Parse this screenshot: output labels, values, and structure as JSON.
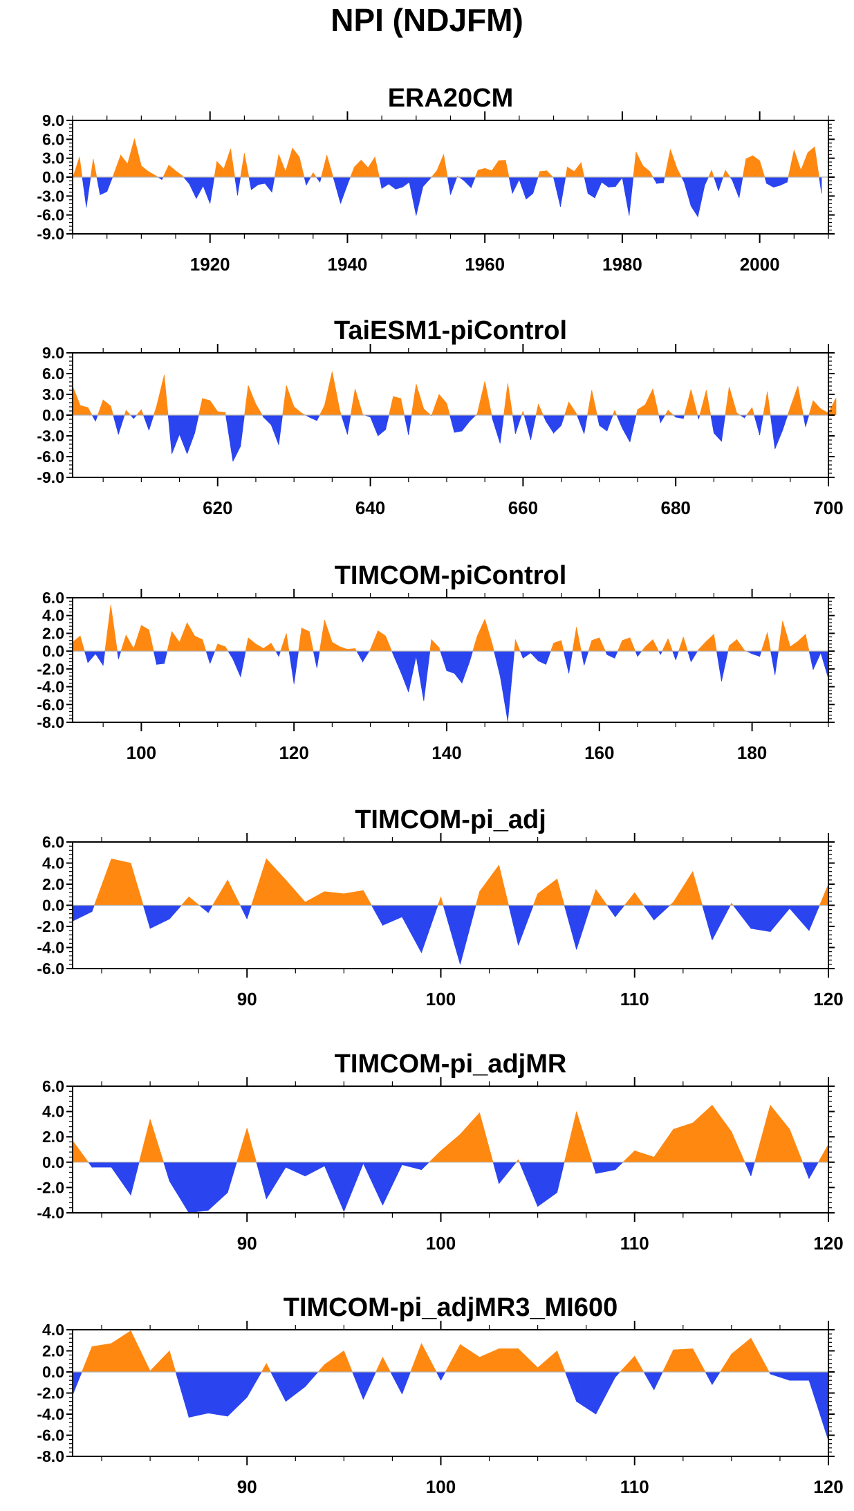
{
  "title": "NPI (NDJFM)",
  "colors": {
    "positive": "#ff8811",
    "negative": "#2a44f0",
    "axis": "#000000",
    "zero": "#b0b0b0"
  },
  "chart_data": [
    {
      "type": "area",
      "title": "ERA20CM",
      "xlim": [
        1900,
        2010
      ],
      "ylim": [
        -9,
        9
      ],
      "yticks": [
        "9.0",
        "6.0",
        "3.0",
        "0.0",
        "-3.0",
        "-6.0",
        "-9.0"
      ],
      "xticks": [
        1920,
        1940,
        1960,
        1980,
        2000
      ],
      "x_start": 1900,
      "values": [
        -0.2,
        3.2,
        -4.8,
        2.9,
        -2.8,
        -2.3,
        0.5,
        3.5,
        2.1,
        6.1,
        1.8,
        0.9,
        0.3,
        -0.4,
        1.9,
        1.0,
        0.2,
        -1.1,
        -3.4,
        -1.4,
        -4.2,
        2.5,
        1.3,
        4.5,
        -2.9,
        3.8,
        -2.0,
        -1.2,
        -1.0,
        -2.4,
        3.6,
        0.9,
        4.6,
        3.2,
        -1.3,
        0.7,
        -0.8,
        3.5,
        -0.3,
        -4.2,
        -1.2,
        1.6,
        2.7,
        1.5,
        3.2,
        -1.8,
        -1.1,
        -1.9,
        -1.6,
        -0.8,
        -6.1,
        -1.5,
        -0.3,
        1.0,
        3.6,
        -2.8,
        0.2,
        -0.6,
        -1.7,
        1.1,
        1.4,
        1.0,
        2.6,
        2.7,
        -2.6,
        -0.4,
        -3.5,
        -2.6,
        0.9,
        1.0,
        -0.1,
        -4.7,
        1.6,
        0.9,
        2.3,
        -2.6,
        -3.3,
        -0.8,
        -1.6,
        -1.5,
        -0.1,
        -6.1,
        4.0,
        1.8,
        0.9,
        -1.0,
        -0.9,
        4.4,
        1.3,
        -0.8,
        -4.6,
        -6.3,
        -1.3,
        1.1,
        -2.2,
        1.1,
        -0.5,
        -3.3,
        2.9,
        3.4,
        2.6,
        -1.0,
        -1.6,
        -1.3,
        -0.8,
        4.3,
        1.1,
        3.9,
        4.8,
        -2.6
      ]
    },
    {
      "type": "area",
      "title": "TaiESM1-piControl",
      "xlim": [
        601,
        700
      ],
      "ylim": [
        -9,
        9
      ],
      "yticks": [
        "9.0",
        "6.0",
        "3.0",
        "0.0",
        "-3.0",
        "-6.0",
        "-9.0"
      ],
      "xticks": [
        620,
        640,
        660,
        680,
        700
      ],
      "x_start": 601,
      "values": [
        4.2,
        1.4,
        1.1,
        -0.9,
        2.2,
        1.3,
        -2.8,
        0.7,
        -0.5,
        0.8,
        -2.2,
        1.3,
        5.8,
        -5.6,
        -2.8,
        -5.6,
        -2.6,
        2.4,
        2.1,
        0.5,
        0.4,
        -6.7,
        -4.5,
        4.3,
        1.6,
        -0.3,
        -1.4,
        -4.3,
        4.3,
        1.2,
        0.3,
        -0.3,
        -0.8,
        1.4,
        6.3,
        0.7,
        -2.8,
        3.8,
        0.1,
        -0.3,
        -3.0,
        -2.1,
        2.7,
        2.4,
        -2.9,
        4.5,
        0.9,
        -0.1,
        3.0,
        1.7,
        -2.5,
        -2.3,
        -0.9,
        0.2,
        4.9,
        -0.6,
        -4.1,
        4.6,
        -2.7,
        0.6,
        -3.6,
        1.6,
        -0.9,
        -2.6,
        -1.5,
        1.9,
        0.2,
        -2.7,
        3.6,
        -1.5,
        -2.3,
        0.7,
        -1.9,
        -3.9,
        0.8,
        1.5,
        3.8,
        -1.1,
        0.7,
        -0.3,
        -0.5,
        3.7,
        -0.6,
        3.6,
        -2.6,
        -3.8,
        4.1,
        0.3,
        -0.4,
        1.1,
        -2.9,
        3.4,
        -4.9,
        -2.2,
        1.1,
        4.2,
        -1.7,
        2.1,
        0.9,
        0.3,
        2.5
      ]
    },
    {
      "type": "area",
      "title": "TIMCOM-piControl",
      "xlim": [
        91,
        190
      ],
      "ylim": [
        -8,
        6
      ],
      "yticks": [
        "6.0",
        "4.0",
        "2.0",
        "0.0",
        "-2.0",
        "-4.0",
        "-6.0",
        "-8.0"
      ],
      "xticks": [
        100,
        120,
        140,
        160,
        180
      ],
      "x_start": 91,
      "values": [
        1.0,
        1.7,
        -1.3,
        -0.3,
        -1.6,
        5.2,
        -0.9,
        1.8,
        0.3,
        2.9,
        2.4,
        -1.5,
        -1.4,
        2.2,
        1.0,
        3.2,
        1.7,
        1.3,
        -1.4,
        0.8,
        0.5,
        -0.9,
        -2.9,
        1.5,
        0.8,
        0.3,
        0.9,
        -0.6,
        2.0,
        -3.7,
        2.6,
        2.2,
        -1.9,
        3.5,
        1.0,
        0.5,
        0.2,
        0.3,
        -1.2,
        0.2,
        2.3,
        1.7,
        -0.4,
        -2.4,
        -4.6,
        -0.6,
        -5.6,
        1.3,
        0.4,
        -2.2,
        -2.5,
        -3.6,
        -1.2,
        1.7,
        3.6,
        0.7,
        -2.8,
        -7.9,
        1.3,
        -0.8,
        -0.2,
        -1.1,
        -1.5,
        0.9,
        1.2,
        -2.5,
        2.7,
        -1.6,
        1.2,
        1.5,
        -0.4,
        -0.8,
        1.2,
        1.5,
        -0.6,
        0.5,
        1.3,
        -0.4,
        1.4,
        -1.0,
        1.6,
        -1.2,
        0.2,
        1.1,
        1.9,
        -3.4,
        0.6,
        1.3,
        0.1,
        -0.3,
        -0.6,
        2.1,
        -2.7,
        3.4,
        0.5,
        1.1,
        1.9,
        -2.1,
        -0.2,
        -3.1
      ]
    },
    {
      "type": "area",
      "title": "TIMCOM-pi_adj",
      "xlim": [
        81,
        120
      ],
      "ylim": [
        -6,
        6
      ],
      "yticks": [
        "6.0",
        "4.0",
        "2.0",
        "0.0",
        "-2.0",
        "-4.0",
        "-6.0"
      ],
      "xticks": [
        90,
        100,
        110,
        120
      ],
      "x_start": 81,
      "values": [
        -1.5,
        -0.6,
        4.4,
        4.0,
        -2.2,
        -1.3,
        0.8,
        -0.7,
        2.4,
        -1.3,
        4.4,
        2.4,
        0.3,
        1.3,
        1.1,
        1.4,
        -1.9,
        -1.1,
        -4.5,
        0.8,
        -5.6,
        1.3,
        3.8,
        -3.8,
        1.1,
        2.5,
        -4.2,
        1.5,
        -1.1,
        1.2,
        -1.4,
        0.3,
        3.2,
        -3.3,
        0.2,
        -2.2,
        -2.5,
        -0.3,
        -2.4,
        2.0
      ]
    },
    {
      "type": "area",
      "title": "TIMCOM-pi_adjMR",
      "xlim": [
        81,
        120
      ],
      "ylim": [
        -4,
        6
      ],
      "yticks": [
        "6.0",
        "4.0",
        "2.0",
        "0.0",
        "-2.0",
        "-4.0"
      ],
      "xticks": [
        90,
        100,
        110,
        120
      ],
      "x_start": 81,
      "values": [
        1.7,
        -0.4,
        -0.4,
        -2.6,
        3.4,
        -1.5,
        -4.0,
        -3.8,
        -2.4,
        2.7,
        -2.9,
        -0.4,
        -1.1,
        -0.3,
        -3.9,
        -0.1,
        -3.4,
        -0.2,
        -0.6,
        0.9,
        2.2,
        3.9,
        -1.7,
        0.2,
        -3.5,
        -2.4,
        4.0,
        -0.9,
        -0.6,
        0.9,
        0.4,
        2.6,
        3.1,
        4.5,
        2.4,
        -1.1,
        4.5,
        2.6,
        -1.3,
        1.4
      ]
    },
    {
      "type": "area",
      "title": "TIMCOM-pi_adjMR3_MI600",
      "xlim": [
        81,
        120
      ],
      "ylim": [
        -8,
        4
      ],
      "yticks": [
        "4.0",
        "2.0",
        "0.0",
        "-2.0",
        "-4.0",
        "-6.0",
        "-8.0"
      ],
      "xticks": [
        90,
        100,
        110,
        120
      ],
      "x_start": 81,
      "values": [
        -2.2,
        2.4,
        2.7,
        3.9,
        0.1,
        2.0,
        -4.3,
        -3.9,
        -4.2,
        -2.4,
        0.8,
        -2.8,
        -1.4,
        0.7,
        2.0,
        -2.6,
        1.4,
        -2.1,
        2.7,
        -0.8,
        2.6,
        1.4,
        2.2,
        2.2,
        0.4,
        2.0,
        -2.8,
        -4.0,
        -0.5,
        1.5,
        -1.7,
        2.1,
        2.2,
        -1.2,
        1.7,
        3.2,
        -0.2,
        -0.8,
        -0.8,
        -6.5
      ]
    }
  ]
}
